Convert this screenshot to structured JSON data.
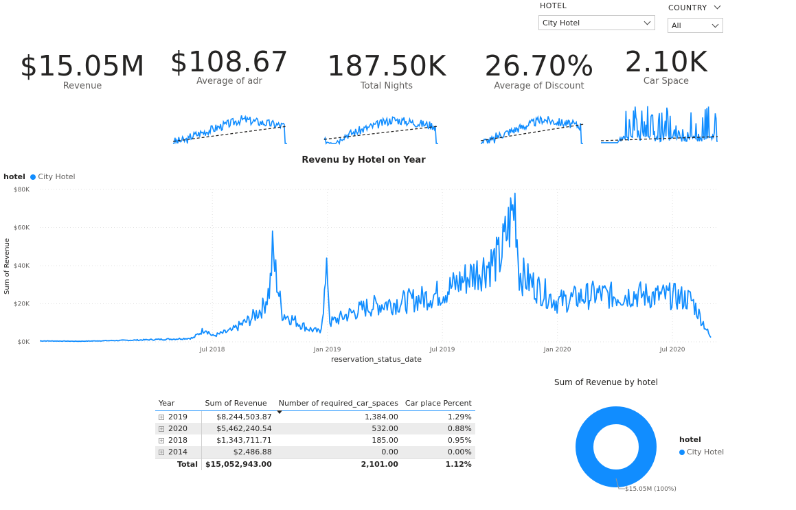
{
  "slicers": {
    "hotel": {
      "title": "HOTEL",
      "value": "City Hotel"
    },
    "country": {
      "title": "COUNTRY",
      "value": "All"
    }
  },
  "kpis": {
    "revenue": {
      "value": "$15.05M",
      "label": "Revenue"
    },
    "adr": {
      "value": "$108.67",
      "label": "Average of adr"
    },
    "nights": {
      "value": "187.50K",
      "label": "Total Nights"
    },
    "discount": {
      "value": "26.70%",
      "label": "Average of Discount"
    },
    "car": {
      "value": "2.10K",
      "label": "Car Space"
    }
  },
  "colors": {
    "series": "#118dff",
    "trend": "#252423",
    "grid": "#e1e1e1"
  },
  "line_chart": {
    "title": "Revenu by Hotel on Year",
    "legend_title": "hotel",
    "legend_items": [
      "City Hotel"
    ],
    "xlabel": "reservation_status_date",
    "ylabel": "Sum of Revenue",
    "y_ticks": [
      "$80K",
      "$60K",
      "$40K",
      "$20K",
      "$0K"
    ],
    "x_ticks": [
      "Jul 2018",
      "Jan 2019",
      "Jul 2019",
      "Jan 2020",
      "Jul 2020"
    ]
  },
  "table": {
    "headers": [
      "Year",
      "Sum of Revenue",
      "Number of required_car_spaces",
      "Car place Percent"
    ],
    "rows": [
      {
        "year": "2019",
        "revenue": "$8,244,503.87",
        "car": "1,384.00",
        "pct": "1.29%"
      },
      {
        "year": "2020",
        "revenue": "$5,462,240.54",
        "car": "532.00",
        "pct": "0.88%"
      },
      {
        "year": "2018",
        "revenue": "$1,343,711.71",
        "car": "185.00",
        "pct": "0.95%"
      },
      {
        "year": "2014",
        "revenue": "$2,486.88",
        "car": "0.00",
        "pct": "0.00%"
      }
    ],
    "total": {
      "label": "Total",
      "revenue": "$15,052,943.00",
      "car": "2,101.00",
      "pct": "1.12%"
    }
  },
  "donut": {
    "title": "Sum of Revenue by hotel",
    "legend_title": "hotel",
    "legend_item": "City Hotel",
    "data_label": "$15.05M (100%)"
  },
  "chart_data": [
    {
      "type": "line",
      "title": "Revenu by Hotel on Year",
      "xlabel": "reservation_status_date",
      "ylabel": "Sum of Revenue",
      "x_range": [
        "2017-10",
        "2020-09"
      ],
      "ylim": [
        0,
        80000
      ],
      "grid": true,
      "legend": "top-left",
      "series": [
        {
          "name": "City Hotel",
          "x": [
            "2017-10",
            "2017-11",
            "2017-12",
            "2018-01",
            "2018-02",
            "2018-03",
            "2018-04",
            "2018-05",
            "2018-06",
            "2018-06-20",
            "2018-07",
            "2018-08",
            "2018-09",
            "2018-09-20",
            "2018-10",
            "2018-10-05",
            "2018-10-20",
            "2018-11",
            "2018-11-20",
            "2018-12",
            "2018-12-20",
            "2019-01",
            "2019-01-05",
            "2019-02",
            "2019-03",
            "2019-04",
            "2019-05",
            "2019-06",
            "2019-07",
            "2019-08",
            "2019-09",
            "2019-10",
            "2019-10-25",
            "2019-11",
            "2019-12",
            "2020-01",
            "2020-02",
            "2020-03",
            "2020-04",
            "2020-05",
            "2020-06",
            "2020-07",
            "2020-08",
            "2020-09"
          ],
          "values": [
            500,
            400,
            300,
            500,
            700,
            900,
            1200,
            1500,
            2000,
            7000,
            3000,
            6000,
            12000,
            18000,
            28000,
            47000,
            15000,
            13000,
            9000,
            7000,
            5000,
            38000,
            10000,
            14000,
            18000,
            20000,
            21000,
            23000,
            26000,
            32000,
            38000,
            44000,
            73000,
            36000,
            28000,
            21000,
            23000,
            25000,
            24000,
            25000,
            24000,
            24000,
            22000,
            2000
          ]
        }
      ]
    },
    {
      "type": "pie",
      "title": "Sum of Revenue by hotel",
      "categories": [
        "City Hotel"
      ],
      "values": [
        15052943
      ]
    },
    {
      "type": "table",
      "columns": [
        "Year",
        "Sum of Revenue",
        "Number of required_car_spaces",
        "Car place Percent"
      ],
      "rows": [
        [
          "2019",
          8244503.87,
          1384.0,
          1.29
        ],
        [
          "2020",
          5462240.54,
          532.0,
          0.88
        ],
        [
          "2018",
          1343711.71,
          185.0,
          0.95
        ],
        [
          "2014",
          2486.88,
          0.0,
          0.0
        ]
      ],
      "total": [
        "Total",
        15052943.0,
        2101.0,
        1.12
      ]
    }
  ]
}
